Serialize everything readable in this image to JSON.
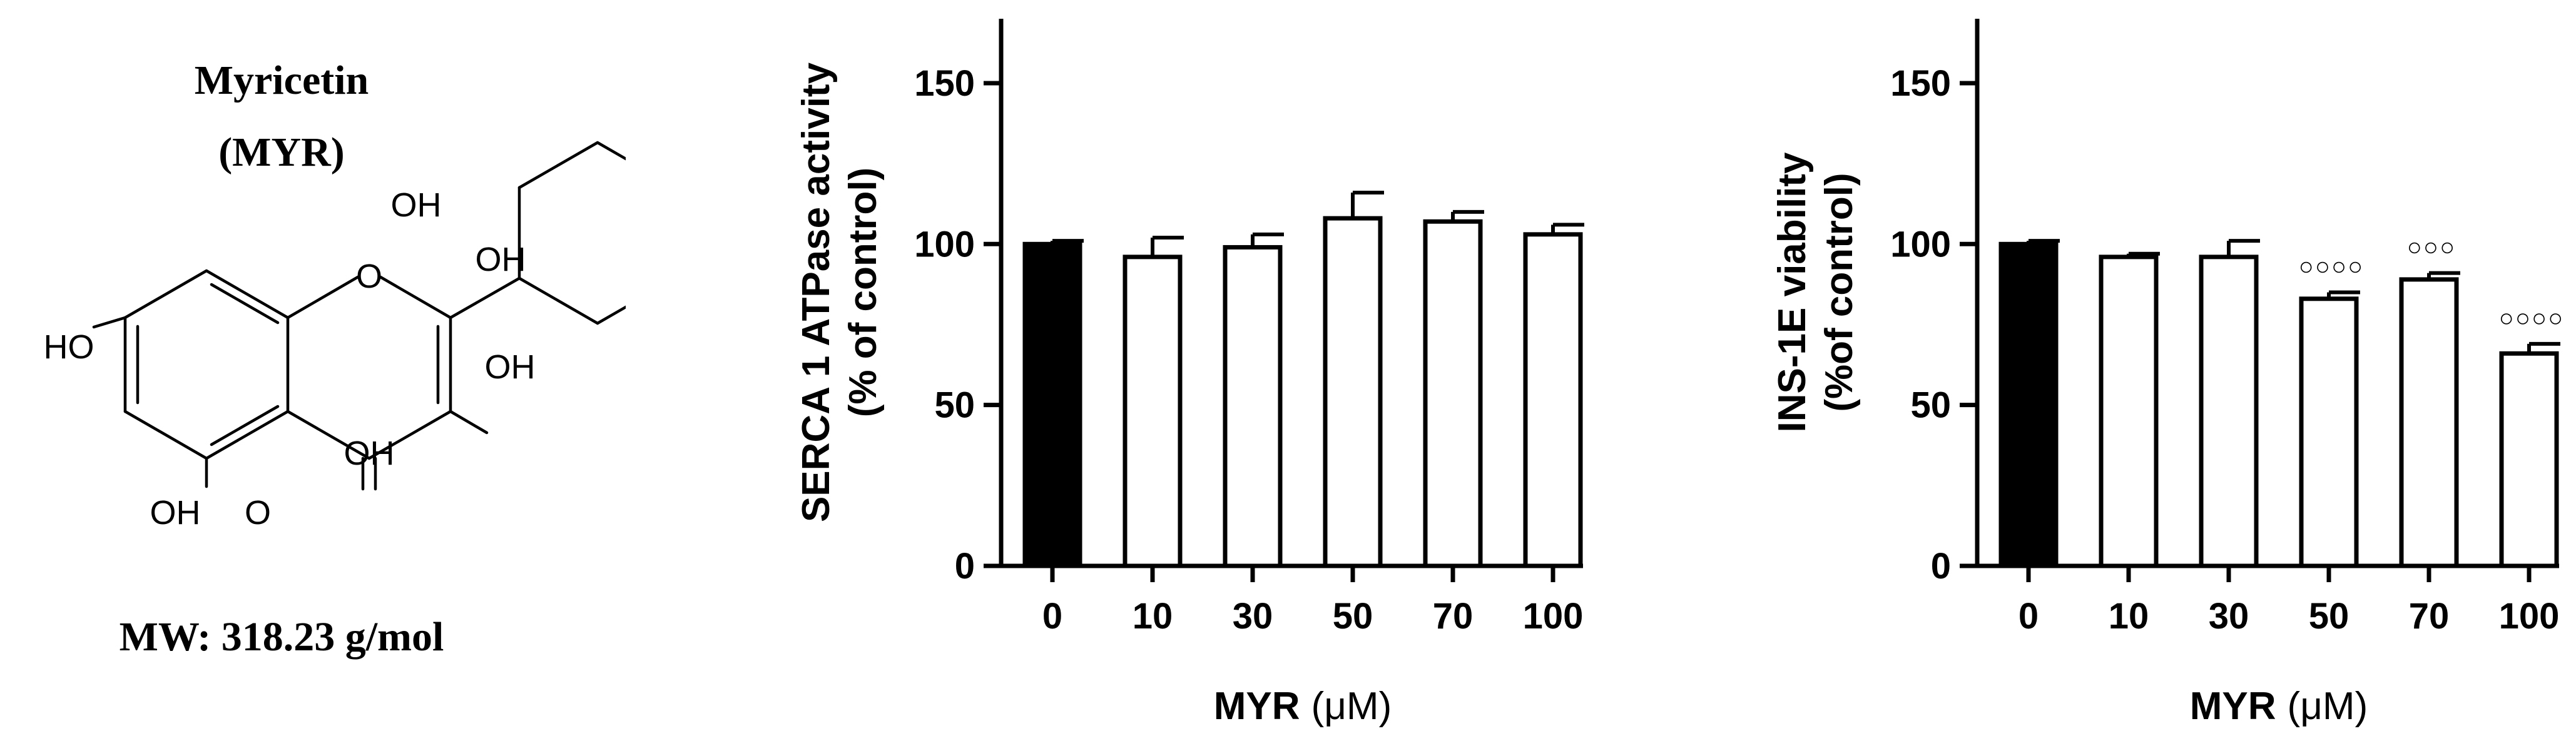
{
  "compound": {
    "name": "Myricetin",
    "abbrev": "(MYR)",
    "mw": "MW: 318.23 g/mol",
    "atoms": [
      "OH",
      "OH",
      "OH",
      "HO",
      "O",
      "OH",
      "OH",
      "O"
    ]
  },
  "chart_data": [
    {
      "type": "bar",
      "categories": [
        "0",
        "10",
        "30",
        "50",
        "70",
        "100"
      ],
      "values": [
        100,
        96,
        99,
        108,
        107,
        103
      ],
      "errors": [
        1,
        6,
        4,
        8,
        3,
        3
      ],
      "bar_fills": [
        "#000000",
        "#ffffff",
        "#ffffff",
        "#ffffff",
        "#ffffff",
        "#ffffff"
      ],
      "significance": [
        "",
        "",
        "",
        "",
        "",
        ""
      ],
      "ylabel_line1": "SERCA 1 ATPase activity",
      "ylabel_line2": "(% of control)",
      "xlabel": "MYR",
      "xlabel_unit": "(μM)",
      "ylim": [
        0,
        170
      ],
      "yticks": [
        0,
        50,
        100,
        150
      ],
      "grid": false,
      "legend": "none"
    },
    {
      "type": "bar",
      "categories": [
        "0",
        "10",
        "30",
        "50",
        "70",
        "100"
      ],
      "values": [
        100,
        96,
        96,
        83,
        89,
        66
      ],
      "errors": [
        1,
        1,
        5,
        2,
        2,
        3
      ],
      "bar_fills": [
        "#000000",
        "#ffffff",
        "#ffffff",
        "#ffffff",
        "#ffffff",
        "#ffffff"
      ],
      "significance": [
        "",
        "",
        "",
        "○○○○",
        "○○○",
        "○○○○"
      ],
      "ylabel_line1": "INS-1E viability",
      "ylabel_line2": "(%of control)",
      "xlabel": "MYR",
      "xlabel_unit": "(μM)",
      "ylim": [
        0,
        170
      ],
      "yticks": [
        0,
        50,
        100,
        150
      ],
      "grid": false,
      "legend": "none"
    }
  ]
}
